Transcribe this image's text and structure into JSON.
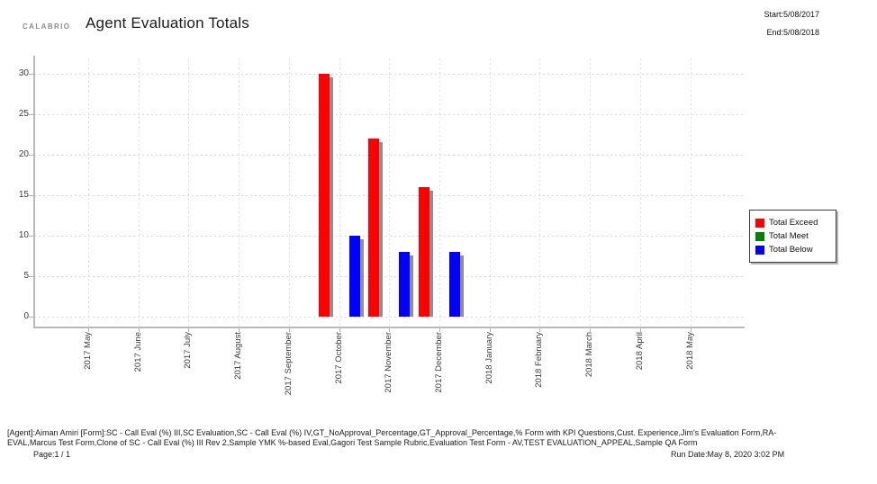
{
  "header": {
    "logo": "CALABRIO",
    "title": "Agent Evaluation Totals",
    "start_label": "Start:5/08/2017",
    "end_label": "End:5/08/2018"
  },
  "chart_data": {
    "type": "bar",
    "title": "Agent Evaluation Totals",
    "categories": [
      "2017 May",
      "2017 June",
      "2017 July",
      "2017 August",
      "2017 September",
      "2017 October",
      "2017 November",
      "2017 December",
      "2018 January",
      "2018 February",
      "2018 March",
      "2018 April",
      "2018 May"
    ],
    "series": [
      {
        "name": "Total Exceed",
        "color": "#ff0000",
        "values": [
          0,
          0,
          0,
          0,
          0,
          30,
          22,
          16,
          0,
          0,
          0,
          0,
          0
        ]
      },
      {
        "name": "Total Meet",
        "color": "#008000",
        "values": [
          0,
          0,
          0,
          0,
          0,
          0,
          0,
          0,
          0,
          0,
          0,
          0,
          0
        ]
      },
      {
        "name": "Total Below",
        "color": "#0000ff",
        "values": [
          0,
          0,
          0,
          0,
          0,
          10,
          8,
          8,
          0,
          0,
          0,
          0,
          0
        ]
      }
    ],
    "xlabel": "",
    "ylabel": "",
    "ylim": [
      0,
      30
    ],
    "yticks": [
      0,
      5,
      10,
      15,
      20,
      25,
      30
    ],
    "grid": true,
    "legend_position": "right"
  },
  "footer": {
    "lines": [
      "[Agent]:Aiman Amiri [Form]:SC - Call Eval (%) III,SC Evaluation,SC - Call Eval (%) IV,GT_NoApproval_Percentage,GT_Approval_Percentage,% Form with KPI Questions,Cust. Experience,Jim's Evaluation Form,RA-",
      "EVAL,Marcus Test Form,Clone of SC - Call Eval (%) III Rev 2,Sample YMK %-based Eval,Gagori Test Sample Rubric,Evaluation Test Form - AV,TEST EVALUATION_APPEAL,Sample QA Form"
    ],
    "page_label": "Page:1 / 1",
    "run_date_label": "Run Date:May 8, 2020 3:02 PM"
  }
}
